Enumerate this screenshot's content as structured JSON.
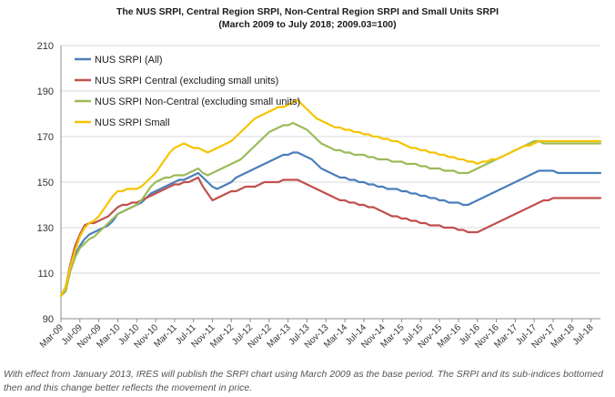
{
  "chart_data": {
    "type": "line",
    "title": "The NUS SRPI, Central Region SRPI,  Non-Central Region SRPI  and  Small Units SRPI",
    "subtitle": "(March 2009 to July 2018; 2009.03=100)",
    "xlabel": "",
    "ylabel": "",
    "ylim": [
      90,
      210
    ],
    "yticks": [
      90,
      110,
      130,
      150,
      170,
      190,
      210
    ],
    "grid": "horizontal",
    "legend_position": "top-left",
    "x_start": "Mar-09",
    "x_tick_labels": [
      "Mar-09",
      "Jul-09",
      "Nov-09",
      "Mar-10",
      "Jul-10",
      "Nov-10",
      "Mar-11",
      "Jul-11",
      "Nov-11",
      "Mar-12",
      "Jul-12",
      "Nov-12",
      "Mar-13",
      "Jul-13",
      "Nov-13",
      "Mar-14",
      "Jul-14",
      "Nov-14",
      "Mar-15",
      "Jul-15",
      "Nov-15",
      "Mar-16",
      "Jul-16",
      "Nov-16",
      "Mar-17",
      "Jul-17",
      "Nov-17",
      "Mar-18",
      "Jul-18"
    ],
    "series": [
      {
        "name": "NUS SRPI (All)",
        "color": "#4a7ebb",
        "values": [
          100,
          103,
          112,
          118,
          122,
          125,
          127,
          128,
          129,
          130,
          131,
          133,
          136,
          137,
          138,
          139,
          140,
          141,
          143,
          145,
          146,
          147,
          148,
          149,
          150,
          151,
          151,
          152,
          153,
          154,
          152,
          150,
          148,
          147,
          148,
          149,
          150,
          152,
          153,
          154,
          155,
          156,
          157,
          158,
          159,
          160,
          161,
          162,
          162,
          163,
          163,
          162,
          161,
          160,
          158,
          156,
          155,
          154,
          153,
          152,
          152,
          151,
          151,
          150,
          150,
          149,
          149,
          148,
          148,
          147,
          147,
          147,
          146,
          146,
          145,
          145,
          144,
          144,
          143,
          143,
          142,
          142,
          141,
          141,
          141,
          140,
          140,
          141,
          142,
          143,
          144,
          145,
          146,
          147,
          148,
          149,
          150,
          151,
          152,
          153,
          154,
          155,
          155,
          155,
          155,
          154,
          154,
          154,
          154,
          154,
          154,
          154,
          154,
          154,
          154
        ],
        "values_note": "Monthly index from Mar-09 (approximate, read from chart)"
      },
      {
        "name": "NUS SRPI Central (excluding small units)",
        "color": "#c0504d",
        "values": [
          100,
          104,
          114,
          122,
          127,
          131,
          132,
          132,
          133,
          134,
          135,
          137,
          139,
          140,
          140,
          141,
          141,
          142,
          143,
          144,
          145,
          146,
          147,
          148,
          149,
          149,
          150,
          150,
          151,
          152,
          148,
          145,
          142,
          143,
          144,
          145,
          146,
          146,
          147,
          148,
          148,
          148,
          149,
          150,
          150,
          150,
          150,
          151,
          151,
          151,
          151,
          150,
          149,
          148,
          147,
          146,
          145,
          144,
          143,
          142,
          142,
          141,
          141,
          140,
          140,
          139,
          139,
          138,
          137,
          136,
          135,
          135,
          134,
          134,
          133,
          133,
          132,
          132,
          131,
          131,
          131,
          130,
          130,
          130,
          129,
          129,
          128,
          128,
          128,
          129,
          130,
          131,
          132,
          133,
          134,
          135,
          136,
          137,
          138,
          139,
          140,
          141,
          142,
          142,
          143,
          143,
          143,
          143,
          143,
          143,
          143,
          143,
          143,
          143,
          143
        ],
        "values_note": "Monthly index from Mar-09 (approximate, read from chart)"
      },
      {
        "name": "NUS SRPI Non-Central (excluding small units)",
        "color": "#9bbb59",
        "values": [
          100,
          102,
          111,
          117,
          121,
          123,
          125,
          126,
          128,
          130,
          132,
          134,
          136,
          137,
          138,
          139,
          140,
          142,
          145,
          148,
          150,
          151,
          152,
          152,
          153,
          153,
          153,
          154,
          155,
          156,
          154,
          153,
          154,
          155,
          156,
          157,
          158,
          159,
          160,
          162,
          164,
          166,
          168,
          170,
          172,
          173,
          174,
          175,
          175,
          176,
          175,
          174,
          173,
          171,
          169,
          167,
          166,
          165,
          164,
          164,
          163,
          163,
          162,
          162,
          162,
          161,
          161,
          160,
          160,
          160,
          159,
          159,
          159,
          158,
          158,
          158,
          157,
          157,
          156,
          156,
          156,
          155,
          155,
          155,
          154,
          154,
          154,
          155,
          156,
          157,
          158,
          159,
          160,
          161,
          162,
          163,
          164,
          165,
          166,
          167,
          168,
          168,
          167,
          167,
          167,
          167,
          167,
          167,
          167,
          167,
          167,
          167,
          167,
          167,
          167
        ],
        "values_note": "Monthly index from Mar-09 (approximate, read from chart)"
      },
      {
        "name": "NUS SRPI Small",
        "color": "#f5c400",
        "values": [
          100,
          104,
          113,
          120,
          126,
          130,
          132,
          133,
          135,
          138,
          141,
          144,
          146,
          146,
          147,
          147,
          147,
          148,
          150,
          152,
          154,
          157,
          160,
          163,
          165,
          166,
          167,
          166,
          165,
          165,
          164,
          163,
          164,
          165,
          166,
          167,
          168,
          170,
          172,
          174,
          176,
          178,
          179,
          180,
          181,
          182,
          183,
          183,
          184,
          185,
          186,
          184,
          182,
          180,
          178,
          177,
          176,
          175,
          174,
          174,
          173,
          173,
          172,
          172,
          171,
          171,
          170,
          170,
          169,
          169,
          168,
          168,
          167,
          166,
          165,
          165,
          164,
          164,
          163,
          163,
          162,
          162,
          161,
          161,
          160,
          160,
          159,
          159,
          158,
          159,
          159,
          160,
          160,
          161,
          162,
          163,
          164,
          165,
          166,
          166,
          167,
          168,
          168,
          168,
          168,
          168,
          168,
          168,
          168,
          168,
          168,
          168,
          168,
          168,
          168
        ],
        "values_note": "Monthly index from Mar-09 (approximate, read from chart)"
      }
    ]
  },
  "caption": "With effect from January 2013, IRES will publish the SRPI chart using March 2009 as the base period. The SRPI and its sub-indices bottomed then and this change better reflects the movement in price."
}
